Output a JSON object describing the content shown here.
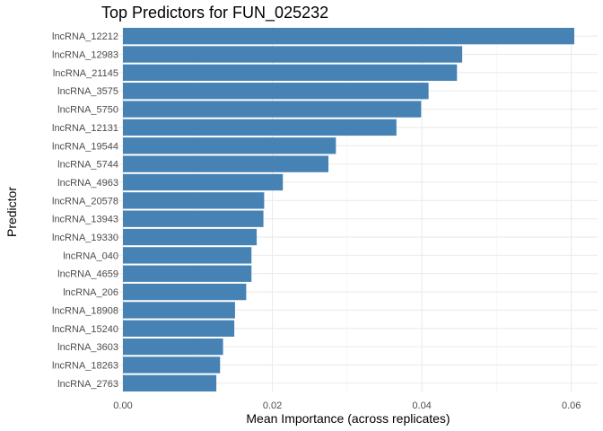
{
  "chart_data": {
    "type": "bar",
    "orientation": "horizontal",
    "title": "Top Predictors for FUN_025232",
    "xlabel": "Mean Importance (across replicates)",
    "ylabel": "Predictor",
    "xlim": [
      0,
      0.0625
    ],
    "x_ticks": [
      0.0,
      0.02,
      0.04,
      0.06
    ],
    "x_tick_labels": [
      "0.00",
      "0.02",
      "0.04",
      "0.06"
    ],
    "grid": true,
    "bar_color": "#4682B4",
    "categories": [
      "lncRNA_12212",
      "lncRNA_12983",
      "lncRNA_21145",
      "lncRNA_3575",
      "lncRNA_5750",
      "lncRNA_12131",
      "lncRNA_19544",
      "lncRNA_5744",
      "lncRNA_4963",
      "lncRNA_20578",
      "lncRNA_13943",
      "lncRNA_19330",
      "lncRNA_040",
      "lncRNA_4659",
      "lncRNA_206",
      "lncRNA_18908",
      "lncRNA_15240",
      "lncRNA_3603",
      "lncRNA_18263",
      "lncRNA_2763"
    ],
    "values": [
      0.0604,
      0.0454,
      0.0447,
      0.0409,
      0.0399,
      0.0366,
      0.0285,
      0.0275,
      0.0214,
      0.0189,
      0.0188,
      0.0179,
      0.0172,
      0.0172,
      0.0165,
      0.015,
      0.0149,
      0.0134,
      0.013,
      0.0125
    ]
  }
}
